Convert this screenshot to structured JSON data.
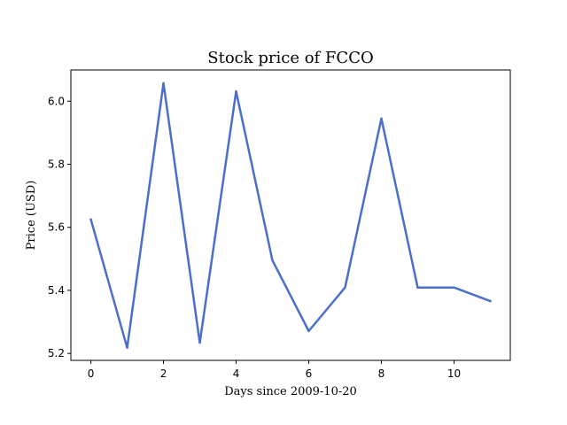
{
  "chart_data": {
    "type": "line",
    "title": "Stock price of FCCO",
    "xlabel": "Days since 2009-10-20",
    "ylabel": "Price (USD)",
    "x": [
      0,
      1,
      2,
      3,
      4,
      5,
      6,
      7,
      8,
      9,
      10,
      11
    ],
    "series": [
      {
        "values": [
          5.625,
          5.218,
          6.057,
          5.234,
          6.031,
          5.495,
          5.271,
          5.409,
          5.945,
          5.409,
          5.409,
          5.366
        ]
      }
    ],
    "xlim": [
      -0.55,
      11.55
    ],
    "ylim": [
      5.178,
      6.099
    ],
    "xticks": [
      0,
      2,
      4,
      6,
      8,
      10
    ],
    "xtick_labels": [
      "0",
      "2",
      "4",
      "6",
      "8",
      "10"
    ],
    "yticks": [
      5.2,
      5.4,
      5.6,
      5.8,
      6.0
    ],
    "ytick_labels": [
      "5.2",
      "5.4",
      "5.6",
      "5.8",
      "6.0"
    ],
    "grid": false,
    "line_color": "#4c6fca"
  }
}
